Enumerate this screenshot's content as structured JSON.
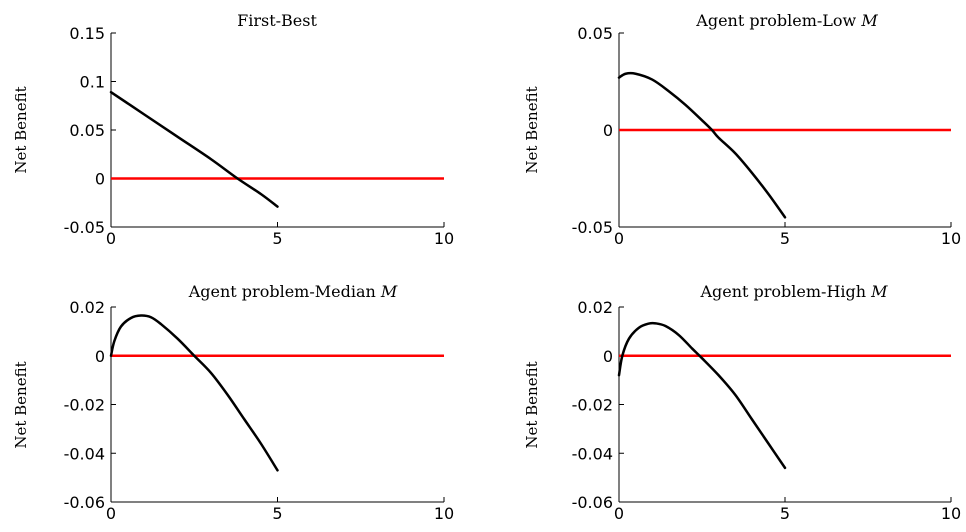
{
  "chart_data": [
    {
      "type": "line",
      "title": "First-Best",
      "title_math": "",
      "ylabel": "Net Benefit",
      "xlim": [
        0,
        10
      ],
      "ylim": [
        -0.05,
        0.15
      ],
      "xticks": [
        0,
        5,
        10
      ],
      "xtick_labels": [
        "0",
        "5",
        "10"
      ],
      "yticks": [
        -0.05,
        0,
        0.05,
        0.1,
        0.15
      ],
      "ytick_labels": [
        "-0.05",
        "0",
        "0.05",
        "0.1",
        "0.15"
      ],
      "series": [
        {
          "x": [
            0,
            1,
            2,
            3,
            3.8,
            4.5,
            5
          ],
          "y": [
            0.089,
            0.066,
            0.043,
            0.02,
            0.0,
            -0.016,
            -0.029
          ],
          "color": "#000000"
        },
        {
          "x": [
            0,
            10
          ],
          "y": [
            0,
            0
          ],
          "color": "#ff0000"
        }
      ]
    },
    {
      "type": "line",
      "title": "Agent problem-Low ",
      "title_math": "M",
      "ylabel": "Net Benefit",
      "xlim": [
        0,
        10
      ],
      "ylim": [
        -0.05,
        0.05
      ],
      "xticks": [
        0,
        5,
        10
      ],
      "xtick_labels": [
        "0",
        "5",
        "10"
      ],
      "yticks": [
        -0.05,
        0,
        0.05
      ],
      "ytick_labels": [
        "-0.05",
        "0",
        "0.05"
      ],
      "series": [
        {
          "x": [
            0,
            0.2,
            0.5,
            1,
            1.5,
            2,
            2.5,
            2.8,
            3,
            3.5,
            4,
            4.5,
            5
          ],
          "y": [
            0.027,
            0.029,
            0.029,
            0.026,
            0.02,
            0.013,
            0.005,
            0.0,
            -0.004,
            -0.012,
            -0.022,
            -0.033,
            -0.045
          ],
          "color": "#000000"
        },
        {
          "x": [
            0,
            10
          ],
          "y": [
            0,
            0
          ],
          "color": "#ff0000"
        }
      ]
    },
    {
      "type": "line",
      "title": "Agent problem-Median ",
      "title_math": "M",
      "ylabel": "Net Benefit",
      "xlim": [
        0,
        10
      ],
      "ylim": [
        -0.06,
        0.02
      ],
      "xticks": [
        0,
        5,
        10
      ],
      "xtick_labels": [
        "0",
        "5",
        "10"
      ],
      "yticks": [
        -0.06,
        -0.04,
        -0.02,
        0,
        0.02
      ],
      "ytick_labels": [
        "-0.06",
        "-0.04",
        "-0.02",
        "0",
        "0.02"
      ],
      "series": [
        {
          "x": [
            0,
            0.1,
            0.3,
            0.6,
            0.9,
            1.2,
            1.5,
            2,
            2.5,
            3,
            3.5,
            4,
            4.5,
            5
          ],
          "y": [
            0.0,
            0.006,
            0.012,
            0.0155,
            0.0165,
            0.0158,
            0.013,
            0.007,
            0.0,
            -0.007,
            -0.016,
            -0.026,
            -0.036,
            -0.047
          ],
          "color": "#000000"
        },
        {
          "x": [
            0,
            10
          ],
          "y": [
            0,
            0
          ],
          "color": "#ff0000"
        }
      ]
    },
    {
      "type": "line",
      "title": "Agent problem-High ",
      "title_math": "M",
      "ylabel": "Net Benefit",
      "xlim": [
        0,
        10
      ],
      "ylim": [
        -0.06,
        0.02
      ],
      "xticks": [
        0,
        5,
        10
      ],
      "xtick_labels": [
        "0",
        "5",
        "10"
      ],
      "yticks": [
        -0.06,
        -0.04,
        -0.02,
        0,
        0.02
      ],
      "ytick_labels": [
        "-0.06",
        "-0.04",
        "-0.02",
        "0",
        "0.02"
      ],
      "series": [
        {
          "x": [
            0,
            0.1,
            0.3,
            0.6,
            0.9,
            1.1,
            1.4,
            1.8,
            2.2,
            2.5,
            3,
            3.5,
            4,
            4.5,
            5
          ],
          "y": [
            -0.008,
            0.0,
            0.007,
            0.0115,
            0.0132,
            0.0133,
            0.0122,
            0.0085,
            0.003,
            -0.001,
            -0.008,
            -0.016,
            -0.026,
            -0.036,
            -0.046
          ],
          "color": "#000000"
        },
        {
          "x": [
            0,
            10
          ],
          "y": [
            0,
            0
          ],
          "color": "#ff0000"
        }
      ]
    }
  ]
}
